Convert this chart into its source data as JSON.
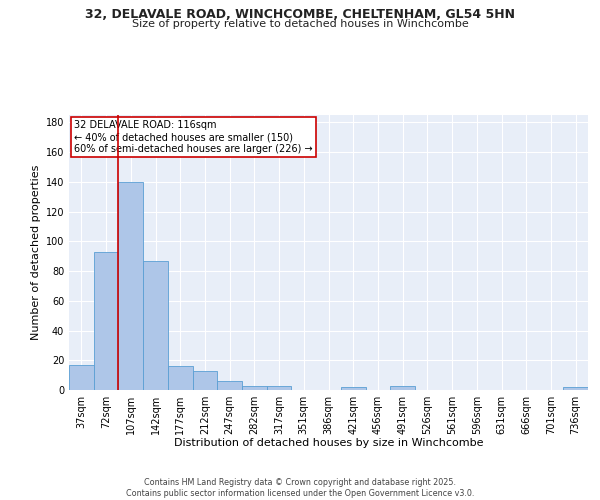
{
  "title_line1": "32, DELAVALE ROAD, WINCHCOMBE, CHELTENHAM, GL54 5HN",
  "title_line2": "Size of property relative to detached houses in Winchcombe",
  "xlabel": "Distribution of detached houses by size in Winchcombe",
  "ylabel": "Number of detached properties",
  "categories": [
    "37sqm",
    "72sqm",
    "107sqm",
    "142sqm",
    "177sqm",
    "212sqm",
    "247sqm",
    "282sqm",
    "317sqm",
    "351sqm",
    "386sqm",
    "421sqm",
    "456sqm",
    "491sqm",
    "526sqm",
    "561sqm",
    "596sqm",
    "631sqm",
    "666sqm",
    "701sqm",
    "736sqm"
  ],
  "values": [
    17,
    93,
    140,
    87,
    16,
    13,
    6,
    3,
    3,
    0,
    0,
    2,
    0,
    3,
    0,
    0,
    0,
    0,
    0,
    0,
    2
  ],
  "bar_color": "#aec6e8",
  "bar_edge_color": "#5a9fd4",
  "background_color": "#e8eef8",
  "grid_color": "#ffffff",
  "vline_position": 1.5,
  "vline_color": "#cc0000",
  "annotation_text": "32 DELAVALE ROAD: 116sqm\n← 40% of detached houses are smaller (150)\n60% of semi-detached houses are larger (226) →",
  "annotation_box_color": "#cc0000",
  "footer_text": "Contains HM Land Registry data © Crown copyright and database right 2025.\nContains public sector information licensed under the Open Government Licence v3.0.",
  "ylim": [
    0,
    185
  ],
  "yticks": [
    0,
    20,
    40,
    60,
    80,
    100,
    120,
    140,
    160,
    180
  ],
  "title_fontsize": 9,
  "subtitle_fontsize": 8,
  "ylabel_fontsize": 8,
  "xlabel_fontsize": 8,
  "tick_fontsize": 7,
  "annotation_fontsize": 7
}
